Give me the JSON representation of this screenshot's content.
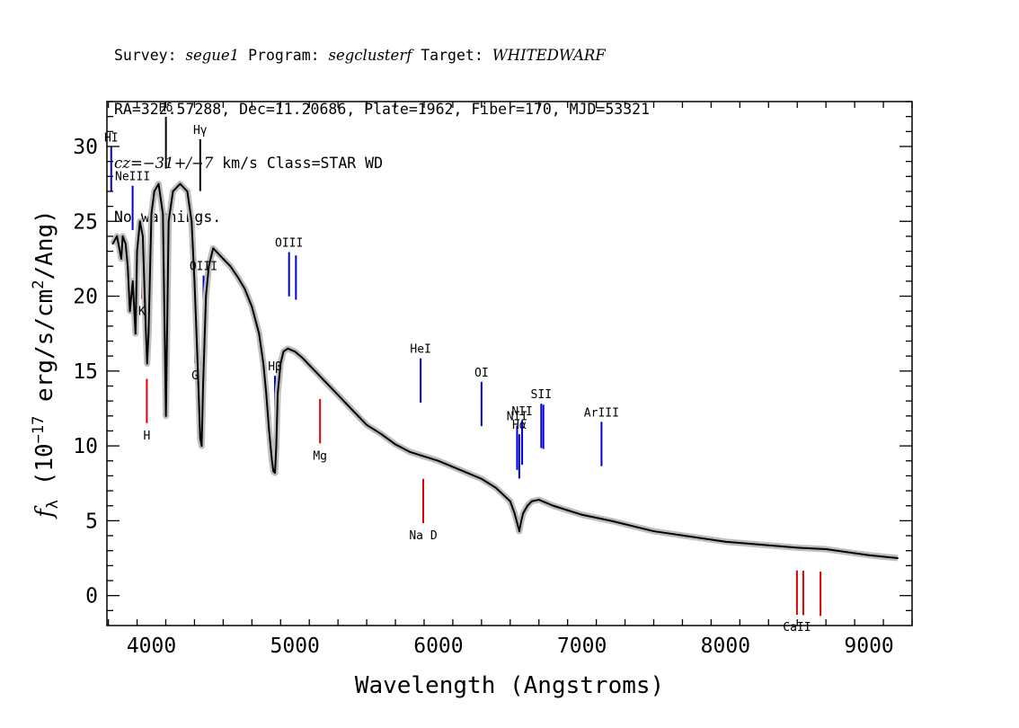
{
  "header": {
    "line1": {
      "survey_label": "Survey: ",
      "survey": "segue1",
      "program_label": " Program: ",
      "program": "segclusterf",
      "target_label": " Target: ",
      "target": "WHITEDWARF"
    },
    "line2": "RA=322.57288, Dec=11.20686, Plate=1962, Fiber=170, MJD=53321",
    "line3": {
      "cz_label": "cz",
      "cz_value": "=−31+/−7",
      "cz_unit": " km/s Class=STAR WD"
    },
    "line4": "No warnings."
  },
  "chart_data": {
    "type": "line",
    "xlabel": "Wavelength (Angstroms)",
    "ylabel": "f_λ (10^-17 erg/s/cm^2/Ang)",
    "xlim": [
      3690,
      9300
    ],
    "ylim": [
      -2,
      33
    ],
    "xticks": [
      4000,
      5000,
      6000,
      7000,
      8000,
      9000
    ],
    "yticks": [
      0,
      5,
      10,
      15,
      20,
      25,
      30
    ],
    "grid": false,
    "series": [
      {
        "color": "#000000",
        "x": [
          3730,
          3760,
          3790,
          3800,
          3820,
          3835,
          3850,
          3870,
          3889,
          3900,
          3920,
          3940,
          3960,
          3970,
          3980,
          4000,
          4020,
          4050,
          4080,
          4101,
          4120,
          4150,
          4200,
          4250,
          4280,
          4300,
          4320,
          4340,
          4350,
          4360,
          4380,
          4400,
          4430,
          4450,
          4500,
          4550,
          4600,
          4650,
          4700,
          4750,
          4780,
          4800,
          4820,
          4840,
          4850,
          4861,
          4870,
          4880,
          4900,
          4920,
          4950,
          5000,
          5050,
          5100,
          5200,
          5300,
          5400,
          5500,
          5600,
          5700,
          5800,
          5900,
          6000,
          6100,
          6200,
          6300,
          6400,
          6500,
          6530,
          6550,
          6563,
          6575,
          6590,
          6620,
          6650,
          6700,
          6800,
          6900,
          7000,
          7200,
          7500,
          8000,
          8500,
          8700,
          9000,
          9200
        ],
        "values": [
          23.5,
          24.0,
          22.5,
          24.0,
          23.5,
          22.0,
          19.0,
          21.0,
          17.5,
          23.0,
          25.0,
          24.0,
          18.0,
          15.5,
          17.5,
          25.5,
          27.0,
          27.5,
          25.5,
          12.0,
          25.0,
          27.0,
          27.5,
          27.0,
          25.0,
          21.0,
          16.0,
          10.5,
          10.0,
          14.0,
          20.0,
          22.0,
          23.2,
          23.0,
          22.5,
          22.0,
          21.3,
          20.5,
          19.3,
          17.5,
          15.5,
          13.5,
          11.0,
          9.0,
          8.3,
          8.2,
          10.0,
          13.5,
          15.5,
          16.3,
          16.5,
          16.3,
          15.9,
          15.4,
          14.4,
          13.4,
          12.4,
          11.4,
          10.8,
          10.1,
          9.6,
          9.3,
          9.0,
          8.6,
          8.2,
          7.8,
          7.2,
          6.3,
          5.5,
          4.8,
          4.3,
          4.9,
          5.5,
          6.0,
          6.3,
          6.4,
          6.0,
          5.7,
          5.4,
          5.0,
          4.3,
          3.6,
          3.2,
          3.1,
          2.7,
          2.5
        ]
      }
    ],
    "line_markers": [
      {
        "label": "HI",
        "wavelength": 3720,
        "type": "emission",
        "color": "#0000dd"
      },
      {
        "label": "NeIII",
        "wavelength": 3869,
        "type": "emission",
        "color": "#0000dd"
      },
      {
        "label": "Hδ",
        "wavelength": 4101,
        "type": "absorption",
        "color": "#000000"
      },
      {
        "label": "Hγ",
        "wavelength": 4340,
        "type": "absorption",
        "color": "#000000"
      },
      {
        "label": "OIII",
        "wavelength": 4363,
        "type": "emission",
        "color": "#0000dd"
      },
      {
        "label": "Hβ",
        "wavelength": 4861,
        "type": "emission",
        "color": "#0000dd"
      },
      {
        "label": "OIII",
        "wavelength": 4959,
        "type": "emission",
        "color": "#0000dd"
      },
      {
        "label": "",
        "wavelength": 5007,
        "type": "emission",
        "color": "#0000dd"
      },
      {
        "label": "HeI",
        "wavelength": 5876,
        "type": "emission",
        "color": "#0000dd"
      },
      {
        "label": "OI",
        "wavelength": 6300,
        "type": "emission",
        "color": "#0000dd"
      },
      {
        "label": "NII",
        "wavelength": 6548,
        "type": "emission",
        "color": "#0000dd"
      },
      {
        "label": "Hα",
        "wavelength": 6563,
        "type": "emission",
        "color": "#0000dd"
      },
      {
        "label": "NII",
        "wavelength": 6583,
        "type": "emission",
        "color": "#0000dd"
      },
      {
        "label": "SII",
        "wavelength": 6716,
        "type": "emission",
        "color": "#0000dd"
      },
      {
        "label": "",
        "wavelength": 6731,
        "type": "emission",
        "color": "#0000dd"
      },
      {
        "label": "ArIII",
        "wavelength": 7136,
        "type": "emission",
        "color": "#0000dd"
      },
      {
        "label": "K",
        "wavelength": 3934,
        "type": "absorption",
        "color": "#dd0000"
      },
      {
        "label": "H",
        "wavelength": 3968,
        "type": "absorption",
        "color": "#dd0000"
      },
      {
        "label": "G",
        "wavelength": 4304,
        "type": "absorption",
        "color": "#dd0000"
      },
      {
        "label": "Mg",
        "wavelength": 5175,
        "type": "absorption",
        "color": "#dd0000"
      },
      {
        "label": "Na D",
        "wavelength": 5894,
        "type": "absorption",
        "color": "#dd0000"
      },
      {
        "label": "CaII",
        "wavelength": 8498,
        "type": "absorption",
        "color": "#dd0000"
      },
      {
        "label": "",
        "wavelength": 8542,
        "type": "absorption",
        "color": "#dd0000"
      },
      {
        "label": "",
        "wavelength": 8662,
        "type": "absorption",
        "color": "#dd0000"
      }
    ]
  }
}
